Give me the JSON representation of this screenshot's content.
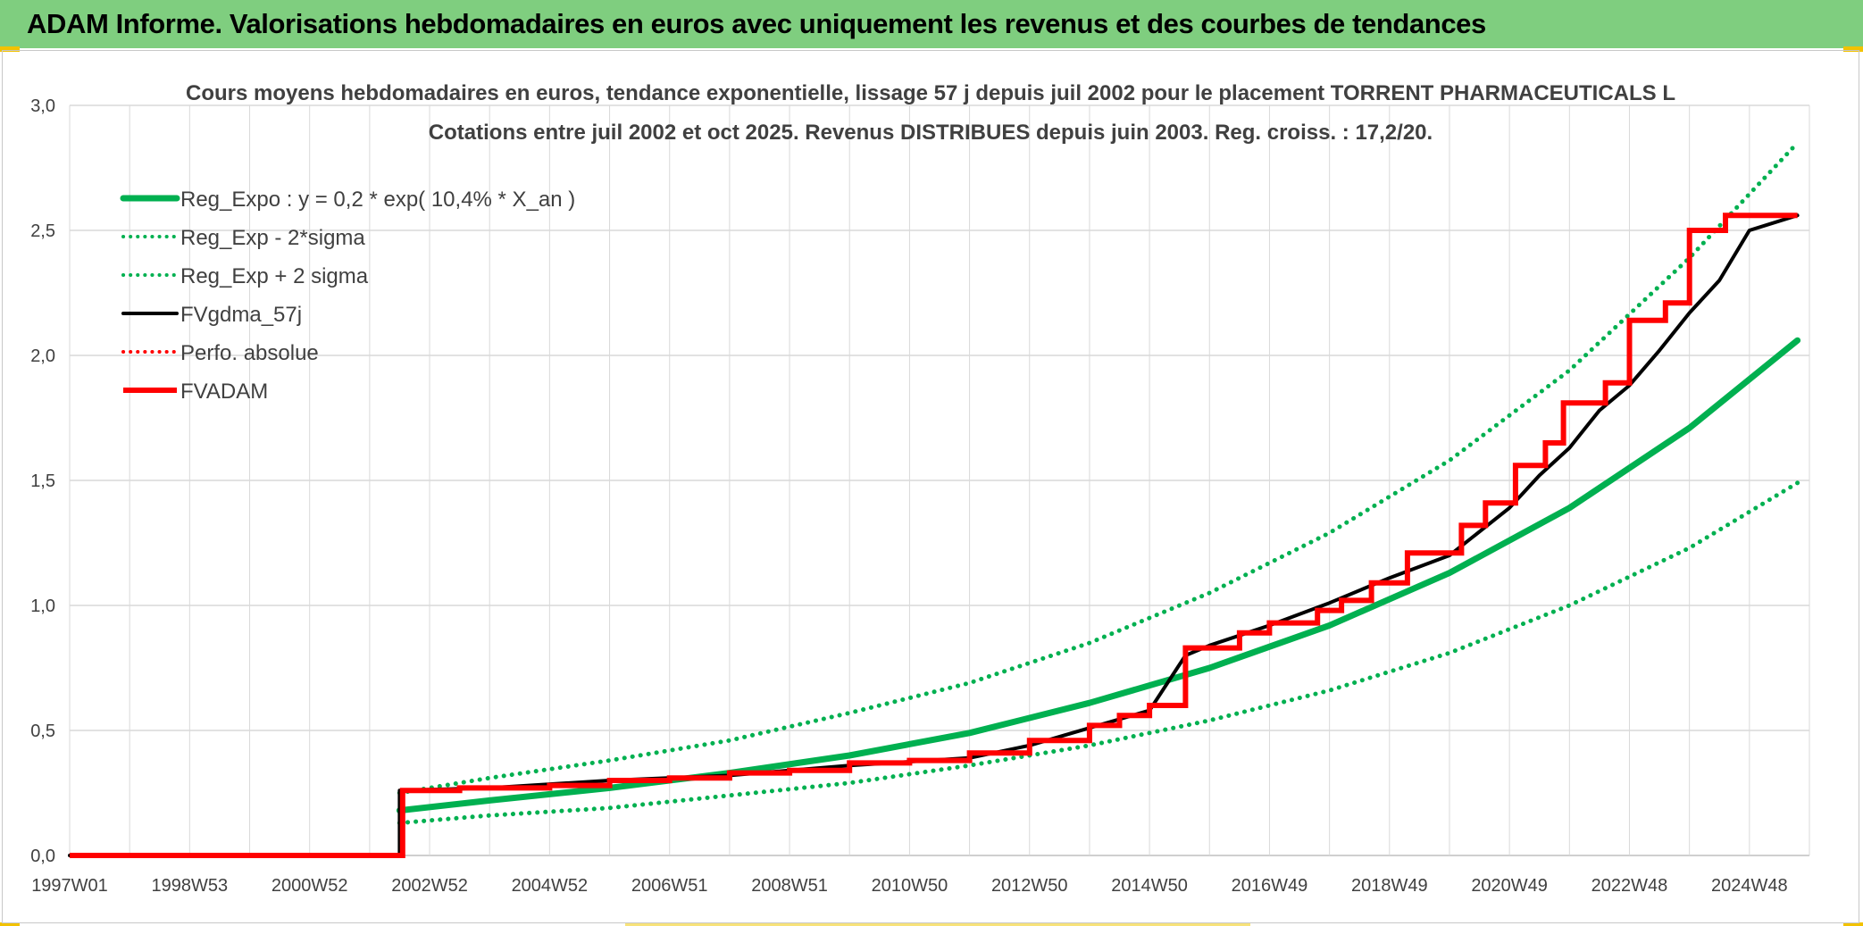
{
  "header": {
    "banner_title": "ADAM Informe. Valorisations hebdomadaires en euros avec uniquement les revenus et des courbes de tendances"
  },
  "colors": {
    "banner_bg": "#7fce7f",
    "reg_green": "#00b050",
    "fvgdma_black": "#000000",
    "fvadam_red": "#ff0000",
    "grid": "#d9d9d9"
  },
  "chart_data": {
    "type": "line",
    "title": "Cours moyens hebdomadaires en euros, tendance exponentielle, lissage 57 j depuis juil 2002 pour le placement TORRENT PHARMACEUTICALS L",
    "subtitle": "Cotations entre juil 2002 et oct 2025. Revenus DISTRIBUES depuis juin 2003. Reg. croiss. : 17,2/20.",
    "x_tick_labels": [
      "1997W01",
      "1998W53",
      "2000W52",
      "2002W52",
      "2004W52",
      "2006W51",
      "2008W51",
      "2010W50",
      "2012W50",
      "2014W50",
      "2016W49",
      "2018W49",
      "2020W49",
      "2022W48",
      "2024W48"
    ],
    "y_tick_labels": [
      "0,0",
      "0,5",
      "1,0",
      "1,5",
      "2,0",
      "2,5",
      "3,0"
    ],
    "xlim": [
      1997.0,
      2026.0
    ],
    "ylim": [
      0,
      3.0
    ],
    "grid": true,
    "legend_position": "top-left",
    "series": [
      {
        "name": "Reg_Expo : y = 0,2 * exp( 10,4% *  X_an )",
        "style": "solid",
        "color": "#00b050",
        "x": [
          2002.5,
          2004,
          2006,
          2008,
          2010,
          2012,
          2014,
          2016,
          2018,
          2020,
          2022,
          2024,
          2025.8
        ],
        "y": [
          0.18,
          0.22,
          0.27,
          0.33,
          0.4,
          0.49,
          0.61,
          0.75,
          0.92,
          1.13,
          1.39,
          1.71,
          2.06
        ]
      },
      {
        "name": "Reg_Exp - 2*sigma",
        "style": "dotted",
        "color": "#00b050",
        "x": [
          2002.5,
          2004,
          2006,
          2008,
          2010,
          2012,
          2014,
          2016,
          2018,
          2020,
          2022,
          2024,
          2025.8
        ],
        "y": [
          0.13,
          0.16,
          0.19,
          0.24,
          0.29,
          0.36,
          0.44,
          0.54,
          0.66,
          0.81,
          1.0,
          1.23,
          1.49
        ]
      },
      {
        "name": "Reg_Exp + 2 sigma",
        "style": "dotted",
        "color": "#00b050",
        "x": [
          2002.5,
          2004,
          2006,
          2008,
          2010,
          2012,
          2014,
          2016,
          2018,
          2020,
          2022,
          2024,
          2025.8
        ],
        "y": [
          0.25,
          0.31,
          0.38,
          0.46,
          0.57,
          0.69,
          0.85,
          1.05,
          1.29,
          1.58,
          1.94,
          2.39,
          2.85
        ]
      },
      {
        "name": "FVgdma_57j",
        "style": "solid",
        "color": "#000000",
        "x": [
          1997.0,
          2002.5,
          2002.5,
          2004,
          2006,
          2008,
          2010,
          2012,
          2013,
          2014,
          2015,
          2015.6,
          2016,
          2017,
          2018,
          2019,
          2020,
          2021,
          2021.5,
          2022,
          2022.5,
          2023,
          2023.5,
          2024,
          2024.5,
          2025,
          2025.8
        ],
        "y": [
          0.0,
          0.0,
          0.26,
          0.27,
          0.3,
          0.32,
          0.36,
          0.39,
          0.44,
          0.51,
          0.58,
          0.8,
          0.84,
          0.92,
          1.01,
          1.11,
          1.2,
          1.39,
          1.52,
          1.63,
          1.78,
          1.88,
          2.02,
          2.17,
          2.3,
          2.5,
          2.56
        ]
      },
      {
        "name": "Perfo. absolue",
        "style": "dotted",
        "color": "#ff0000",
        "x": [],
        "y": []
      },
      {
        "name": "FVADAM",
        "style": "solid-step",
        "color": "#ff0000",
        "x": [
          1997.0,
          2002.55,
          2002.55,
          2003.5,
          2003.5,
          2005.0,
          2005.0,
          2006.0,
          2006.0,
          2007.0,
          2007.0,
          2008.0,
          2008.0,
          2009.0,
          2009.0,
          2010.0,
          2010.0,
          2011.0,
          2011.0,
          2012.0,
          2012.0,
          2013.0,
          2013.0,
          2014.0,
          2014.0,
          2014.5,
          2014.5,
          2015.0,
          2015.0,
          2015.6,
          2015.6,
          2016.5,
          2016.5,
          2017.0,
          2017.0,
          2017.8,
          2017.8,
          2018.2,
          2018.2,
          2018.7,
          2018.7,
          2019.3,
          2019.3,
          2020.2,
          2020.2,
          2020.6,
          2020.6,
          2021.1,
          2021.1,
          2021.6,
          2021.6,
          2021.9,
          2021.9,
          2022.6,
          2022.6,
          2023.0,
          2023.0,
          2023.6,
          2023.6,
          2024.0,
          2024.0,
          2024.6,
          2024.6,
          2025.0,
          2025.0,
          2025.8
        ],
        "y": [
          0.0,
          0.0,
          0.26,
          0.26,
          0.27,
          0.27,
          0.28,
          0.28,
          0.3,
          0.3,
          0.31,
          0.31,
          0.33,
          0.33,
          0.34,
          0.34,
          0.37,
          0.37,
          0.38,
          0.38,
          0.41,
          0.41,
          0.46,
          0.46,
          0.52,
          0.52,
          0.56,
          0.56,
          0.6,
          0.6,
          0.83,
          0.83,
          0.89,
          0.89,
          0.93,
          0.93,
          0.98,
          0.98,
          1.02,
          1.02,
          1.09,
          1.09,
          1.21,
          1.21,
          1.32,
          1.32,
          1.41,
          1.41,
          1.56,
          1.56,
          1.65,
          1.65,
          1.81,
          1.81,
          1.89,
          1.89,
          2.14,
          2.14,
          2.21,
          2.21,
          2.5,
          2.5,
          2.56,
          2.56,
          2.56,
          2.56
        ]
      }
    ]
  }
}
